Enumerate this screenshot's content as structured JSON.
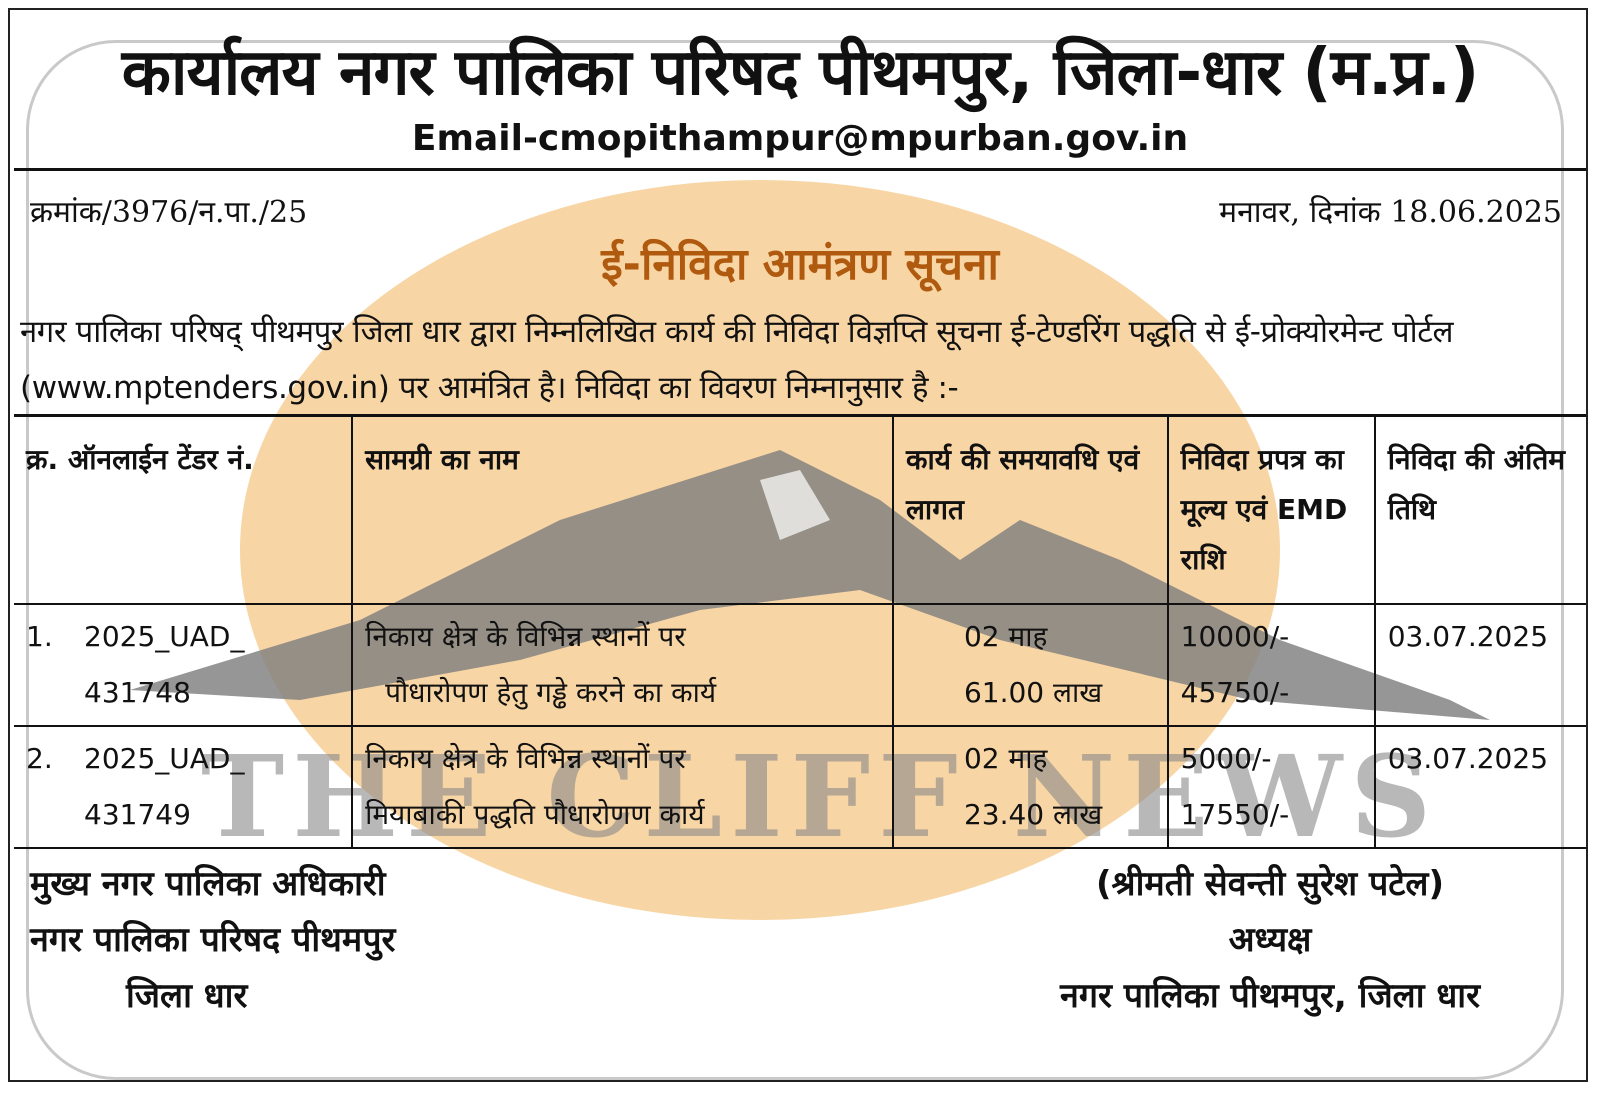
{
  "header": {
    "title": "कार्यालय नगर पालिका परिषद पीथमपुर, जिला-धार (म.प्र.)",
    "email": "Email-cmopithampur@mpurban.gov.in"
  },
  "meta": {
    "reference": "क्रमांक/3976/न.पा./25",
    "date": "मनावर, दिनांक 18.06.2025"
  },
  "notice": {
    "heading": "ई-निविदा आमंत्रण सूचना",
    "intro": "नगर पालिका परिषद् पीथमपुर जिला धार द्वारा निम्नलिखित कार्य की निविदा विज्ञप्ति सूचना ई-टेण्डरिंग पद्धति से ई-प्रोक्योरमेन्ट पोर्टल (www.mptenders.gov.in) पर आमंत्रित है। निविदा का विवरण निम्नानुसार है :-"
  },
  "table": {
    "headers": [
      "क्र. ऑनलाईन टेंडर नं.",
      "सामग्री का नाम",
      "कार्य की समयावधि एवं लागत",
      "निविदा प्रपत्र का मूल्य एवं EMD राशि",
      "निविदा की अंतिम तिथि"
    ],
    "rows": [
      {
        "sno": "1.",
        "tender_line1": "2025_UAD_",
        "tender_line2": "431748",
        "item_line1": "निकाय क्षेत्र के विभिन्न स्थानों पर",
        "item_line2": "पौधारोपण हेतु गड्ढे करने का कार्य",
        "duration": "02 माह",
        "cost": "61.00 लाख",
        "form_fee": "10000/-",
        "emd": "45750/-",
        "last_date": "03.07.2025"
      },
      {
        "sno": "2.",
        "tender_line1": "2025_UAD_",
        "tender_line2": "431749",
        "item_line1": "निकाय क्षेत्र के विभिन्न स्थानों पर",
        "item_line2": "मियाबाकी पद्धति पौधारोणण कार्य",
        "duration": "02 माह",
        "cost": "23.40 लाख",
        "form_fee": "5000/-",
        "emd": "17550/-",
        "last_date": "03.07.2025"
      }
    ]
  },
  "signatures": {
    "left": [
      "मुख्य नगर पालिका अधिकारी",
      "नगर पालिका परिषद पीथमपुर",
      "जिला धार"
    ],
    "right": [
      "(श्रीमती सेवन्ती सुरेश पटेल)",
      "अध्यक्ष",
      "नगर पालिका पीथमपुर, जिला धार"
    ]
  },
  "watermark": {
    "text": "THE CLIFF NEWS",
    "sun_color": "#f6c98a",
    "mountain_color": "#7f7f7f"
  }
}
